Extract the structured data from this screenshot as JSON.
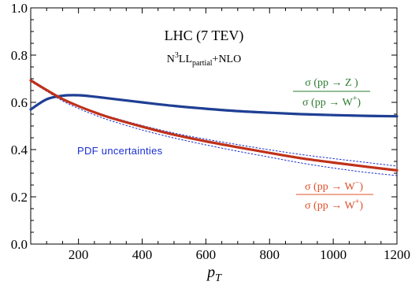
{
  "chart_data": {
    "type": "line",
    "title": "LHC (7 TEV)",
    "subtitle": {
      "prefix": "N",
      "sup": "3",
      "mid": "LL",
      "sub": "partial",
      "suffix": "+NLO"
    },
    "xlabel": {
      "base": "p",
      "sub": "T"
    },
    "ylabel": "",
    "xlim": [
      50,
      1200
    ],
    "ylim": [
      0,
      1.0
    ],
    "x_ticks": [
      200,
      400,
      600,
      800,
      1000,
      1200
    ],
    "y_ticks": [
      0.0,
      0.2,
      0.4,
      0.6,
      0.8,
      1.0
    ],
    "x_tick_labels": [
      "200",
      "400",
      "600",
      "800",
      "1000",
      "1200"
    ],
    "y_tick_labels": [
      "0.0",
      "0.2",
      "0.4",
      "0.6",
      "0.8",
      "1.0"
    ],
    "grid": false,
    "series": [
      {
        "key": "z_over_wplus",
        "color": "#1f3f94",
        "x": [
          50,
          100,
          150,
          200,
          250,
          300,
          400,
          500,
          600,
          700,
          800,
          900,
          1000,
          1100,
          1200
        ],
        "y": [
          0.57,
          0.613,
          0.628,
          0.63,
          0.624,
          0.616,
          0.6,
          0.585,
          0.573,
          0.563,
          0.556,
          0.55,
          0.546,
          0.543,
          0.541
        ],
        "band_upper": [
          0.572,
          0.615,
          0.631,
          0.633,
          0.627,
          0.619,
          0.603,
          0.588,
          0.576,
          0.566,
          0.559,
          0.553,
          0.549,
          0.546,
          0.544
        ],
        "band_lower": [
          0.568,
          0.611,
          0.625,
          0.627,
          0.621,
          0.613,
          0.597,
          0.582,
          0.57,
          0.56,
          0.553,
          0.547,
          0.543,
          0.54,
          0.538
        ]
      },
      {
        "key": "wminus_over_wplus",
        "color": "#c0311a",
        "x": [
          50,
          100,
          150,
          200,
          250,
          300,
          400,
          500,
          600,
          700,
          800,
          900,
          1000,
          1100,
          1200
        ],
        "y": [
          0.693,
          0.652,
          0.614,
          0.584,
          0.558,
          0.535,
          0.497,
          0.463,
          0.435,
          0.41,
          0.386,
          0.363,
          0.345,
          0.328,
          0.312
        ],
        "band_upper": [
          0.698,
          0.656,
          0.617,
          0.587,
          0.561,
          0.539,
          0.502,
          0.47,
          0.444,
          0.421,
          0.399,
          0.379,
          0.362,
          0.346,
          0.33
        ],
        "band_lower": [
          0.688,
          0.647,
          0.606,
          0.574,
          0.547,
          0.523,
          0.483,
          0.449,
          0.42,
          0.393,
          0.368,
          0.343,
          0.322,
          0.304,
          0.29
        ]
      }
    ]
  },
  "annotations": {
    "pdf_uncertainties": "PDF uncertainties",
    "z_ratio": {
      "color": "#2e7d32",
      "numerator": "σ (pp → Z )",
      "denominator_base": "σ (pp → W",
      "denominator_sup": "+",
      "denominator_close": ")"
    },
    "w_ratio": {
      "color": "#e0502a",
      "numerator_base": "σ (pp → W",
      "numerator_sup": "−",
      "numerator_close": ")",
      "denominator_base": "σ (pp → W",
      "denominator_sup": "+",
      "denominator_close": ")"
    },
    "pdf_color": "#1a2fd0"
  }
}
